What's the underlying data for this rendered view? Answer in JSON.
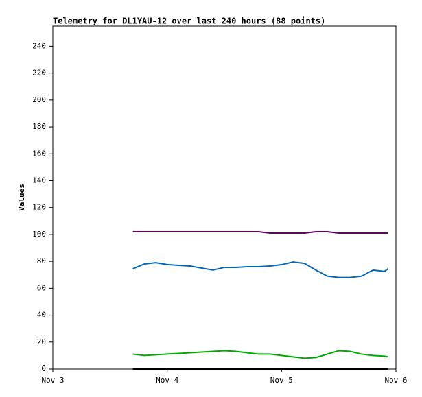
{
  "chart_data": {
    "type": "line",
    "title": "Telemetry for DL1YAU-12 over last 240 hours (88 points)",
    "y_label": "Values",
    "x": [
      3.7,
      3.8,
      3.9,
      4.0,
      4.1,
      4.2,
      4.3,
      4.4,
      4.5,
      4.6,
      4.7,
      4.8,
      4.9,
      5.0,
      5.1,
      5.2,
      5.3,
      5.4,
      5.5,
      5.6,
      5.7,
      5.8,
      5.9,
      5.93
    ],
    "series": [
      {
        "color": "#660066",
        "values": [
          102,
          102,
          102,
          102,
          102,
          102,
          102,
          102,
          102,
          102,
          102,
          102,
          101,
          101,
          101,
          101,
          102,
          102,
          101,
          101,
          101,
          101,
          101,
          101
        ]
      },
      {
        "color": "#0066bb",
        "values": [
          74.5,
          78,
          79,
          77.6,
          77,
          76.5,
          75,
          73.5,
          75.5,
          75.5,
          76,
          76,
          76.5,
          77.5,
          79.5,
          78.5,
          73.5,
          69,
          68,
          68,
          69,
          73.5,
          72.5,
          74.5
        ]
      },
      {
        "color": "#00aa00",
        "values": [
          11,
          10,
          10.5,
          11,
          11.5,
          12,
          12.5,
          13,
          13.5,
          13,
          12,
          11,
          11,
          10,
          9,
          8,
          8.5,
          11,
          13.5,
          13,
          11,
          10,
          9.5,
          9
        ]
      },
      {
        "color": "#000000",
        "values": [
          0,
          0,
          0,
          0,
          0,
          0,
          0,
          0,
          0,
          0,
          0,
          0,
          0,
          0,
          0,
          0,
          0,
          0,
          0,
          0,
          0,
          0,
          0,
          0
        ]
      }
    ],
    "xlim": [
      3,
      6
    ],
    "xticks": [
      {
        "value": 3,
        "label": "Nov 3"
      },
      {
        "value": 4,
        "label": "Nov 4"
      },
      {
        "value": 5,
        "label": "Nov 5"
      },
      {
        "value": 6,
        "label": "Nov 6"
      }
    ],
    "ylim": [
      0,
      255
    ],
    "yticks": [
      0,
      20,
      40,
      60,
      80,
      100,
      120,
      140,
      160,
      180,
      200,
      220,
      240
    ]
  }
}
